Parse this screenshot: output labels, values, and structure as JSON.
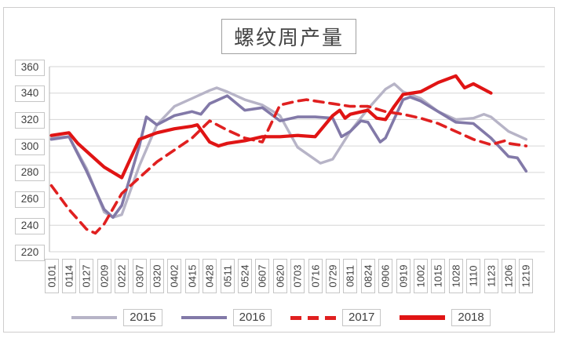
{
  "title": {
    "text": "螺纹周产量"
  },
  "y_axis": {
    "ticks": [
      360,
      340,
      320,
      300,
      280,
      260,
      240,
      220
    ]
  },
  "x_axis": {
    "categories": [
      "0101",
      "0114",
      "0127",
      "0209",
      "0222",
      "0307",
      "0320",
      "0402",
      "0415",
      "0428",
      "0511",
      "0524",
      "0607",
      "0620",
      "0703",
      "0716",
      "0729",
      "0811",
      "0824",
      "0906",
      "0919",
      "1002",
      "1015",
      "1028",
      "1110",
      "1123",
      "1206",
      "1219"
    ]
  },
  "legend": {
    "items": [
      "2015",
      "2016",
      "2017",
      "2018"
    ]
  },
  "colors": {
    "series_2015": "#b7b4c7",
    "series_2016": "#8279a8",
    "series_2017": "#e02020",
    "series_2018": "#e01414",
    "gridline": "#d6d6d6",
    "axis_line": "#c0c0c0",
    "box_border": "#c6c6c6",
    "text": "#3f3f3f"
  },
  "chart_data": {
    "type": "line",
    "title": "螺纹周产量",
    "xlabel": "",
    "ylabel": "",
    "ylim": [
      220,
      360
    ],
    "ytick_step": 20,
    "grid": "horizontal",
    "legend_position": "bottom",
    "x_label_rotation": 90,
    "categories": [
      "0101",
      "0114",
      "0127",
      "0209",
      "0222",
      "0307",
      "0320",
      "0402",
      "0415",
      "0428",
      "0511",
      "0524",
      "0607",
      "0620",
      "0703",
      "0716",
      "0729",
      "0811",
      "0824",
      "0906",
      "0919",
      "1002",
      "1015",
      "1028",
      "1110",
      "1123",
      "1206",
      "1219"
    ],
    "series": [
      {
        "name": "2015",
        "color": "#b7b4c7",
        "style": "solid",
        "width": 3.4,
        "points": [
          [
            0,
            306
          ],
          [
            1,
            307
          ],
          [
            2,
            283
          ],
          [
            3,
            250
          ],
          [
            3.5,
            246
          ],
          [
            4,
            248
          ],
          [
            5,
            285
          ],
          [
            6,
            316
          ],
          [
            7,
            330
          ],
          [
            8,
            336
          ],
          [
            9,
            342
          ],
          [
            9.4,
            344
          ],
          [
            10,
            341
          ],
          [
            11,
            335
          ],
          [
            12,
            331
          ],
          [
            13,
            323
          ],
          [
            14,
            299
          ],
          [
            15.3,
            287
          ],
          [
            16,
            290
          ],
          [
            17,
            311
          ],
          [
            18,
            328
          ],
          [
            19,
            343
          ],
          [
            19.5,
            347
          ],
          [
            20,
            341
          ],
          [
            21,
            336
          ],
          [
            22,
            326
          ],
          [
            23,
            320
          ],
          [
            24,
            321
          ],
          [
            24.6,
            324
          ],
          [
            25,
            322
          ],
          [
            26,
            311
          ],
          [
            27,
            305
          ]
        ]
      },
      {
        "name": "2016",
        "color": "#8279a8",
        "style": "solid",
        "width": 3.6,
        "points": [
          [
            0,
            305
          ],
          [
            1,
            307
          ],
          [
            2,
            281
          ],
          [
            3,
            252
          ],
          [
            3.5,
            246
          ],
          [
            4,
            255
          ],
          [
            5,
            300
          ],
          [
            5.4,
            322
          ],
          [
            6,
            316
          ],
          [
            7,
            323
          ],
          [
            8,
            326
          ],
          [
            8.5,
            324
          ],
          [
            9,
            332
          ],
          [
            10,
            338
          ],
          [
            11,
            327
          ],
          [
            12,
            329
          ],
          [
            13,
            319
          ],
          [
            14,
            322
          ],
          [
            15,
            322
          ],
          [
            16,
            321
          ],
          [
            16.5,
            307
          ],
          [
            17,
            311
          ],
          [
            17.6,
            319
          ],
          [
            18,
            318
          ],
          [
            18.7,
            303
          ],
          [
            19,
            306
          ],
          [
            20,
            335
          ],
          [
            20.4,
            337
          ],
          [
            21,
            334
          ],
          [
            22,
            326
          ],
          [
            23,
            318
          ],
          [
            24,
            317
          ],
          [
            25,
            306
          ],
          [
            26,
            292
          ],
          [
            26.5,
            291
          ],
          [
            27,
            281
          ]
        ]
      },
      {
        "name": "2017",
        "color": "#e02020",
        "style": "dashed",
        "width": 3.6,
        "points": [
          [
            0,
            270
          ],
          [
            1,
            252
          ],
          [
            2,
            237
          ],
          [
            2.5,
            234
          ],
          [
            3,
            241
          ],
          [
            4,
            264
          ],
          [
            5,
            276
          ],
          [
            6,
            288
          ],
          [
            7,
            297
          ],
          [
            8,
            306
          ],
          [
            9,
            319
          ],
          [
            10,
            312
          ],
          [
            11,
            306
          ],
          [
            12,
            303
          ],
          [
            13,
            331
          ],
          [
            14,
            334
          ],
          [
            14.5,
            335
          ],
          [
            15,
            334
          ],
          [
            16,
            332
          ],
          [
            17,
            330
          ],
          [
            18,
            330
          ],
          [
            19,
            326
          ],
          [
            20,
            324
          ],
          [
            21,
            321
          ],
          [
            22,
            317
          ],
          [
            23,
            311
          ],
          [
            24,
            305
          ],
          [
            25,
            301
          ],
          [
            25.8,
            304
          ],
          [
            26,
            302
          ],
          [
            27,
            300
          ]
        ]
      },
      {
        "name": "2018",
        "color": "#e01414",
        "style": "solid",
        "width": 4.2,
        "points": [
          [
            0,
            308
          ],
          [
            1,
            310
          ],
          [
            1.5,
            302
          ],
          [
            2,
            296
          ],
          [
            3,
            284
          ],
          [
            4,
            276
          ],
          [
            5,
            305
          ],
          [
            6,
            310
          ],
          [
            7,
            313
          ],
          [
            8,
            315
          ],
          [
            8.3,
            316
          ],
          [
            9,
            303
          ],
          [
            9.5,
            300
          ],
          [
            10,
            302
          ],
          [
            11,
            304
          ],
          [
            12,
            307
          ],
          [
            13,
            307
          ],
          [
            14,
            308
          ],
          [
            15,
            307
          ],
          [
            16,
            323
          ],
          [
            16.4,
            327
          ],
          [
            16.7,
            321
          ],
          [
            17,
            324
          ],
          [
            18,
            327
          ],
          [
            18.5,
            321
          ],
          [
            19,
            320
          ],
          [
            19.5,
            330
          ],
          [
            20,
            339
          ],
          [
            21,
            341
          ],
          [
            22,
            348
          ],
          [
            23,
            353
          ],
          [
            23.5,
            344
          ],
          [
            24,
            347
          ],
          [
            25,
            340
          ]
        ]
      }
    ]
  }
}
